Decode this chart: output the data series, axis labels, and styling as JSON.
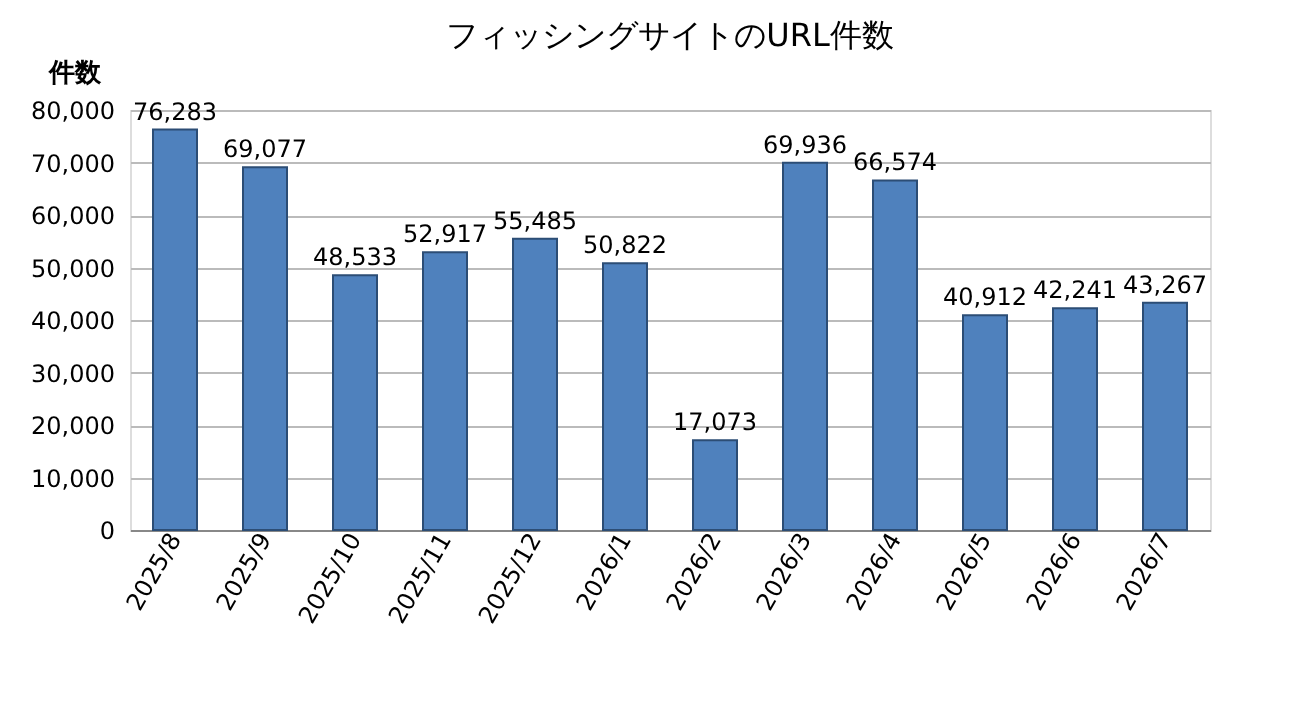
{
  "chart_data": {
    "type": "bar",
    "title": "フィッシングサイトのURL件数",
    "ylabel": "件数",
    "categories": [
      "2025/8",
      "2025/9",
      "2025/10",
      "2025/11",
      "2025/12",
      "2026/1",
      "2026/2",
      "2026/3",
      "2026/4",
      "2026/5",
      "2026/6",
      "2026/7"
    ],
    "values": [
      76283,
      69077,
      48533,
      52917,
      55485,
      50822,
      17073,
      69936,
      66574,
      40912,
      42241,
      43267
    ],
    "value_labels": [
      "76,283",
      "69,077",
      "48,533",
      "52,917",
      "55,485",
      "50,822",
      "17,073",
      "69,936",
      "66,574",
      "40,912",
      "42,241",
      "43,267"
    ],
    "color": "#4f81bd",
    "ylim": [
      0,
      80000
    ],
    "yticks": [
      0,
      {
        "value": 10000,
        "label": "10,000"
      },
      {
        "value": 20000,
        "label": "20,000"
      },
      {
        "value": 30000,
        "label": "30,000"
      },
      {
        "value": 40000,
        "label": "40,000"
      },
      {
        "value": 50000,
        "label": "50,000"
      },
      {
        "value": 60000,
        "label": "60,000"
      },
      {
        "value": 70000,
        "label": "70,000"
      },
      {
        "value": 80000,
        "label": "80,000"
      }
    ],
    "grid": "y"
  }
}
